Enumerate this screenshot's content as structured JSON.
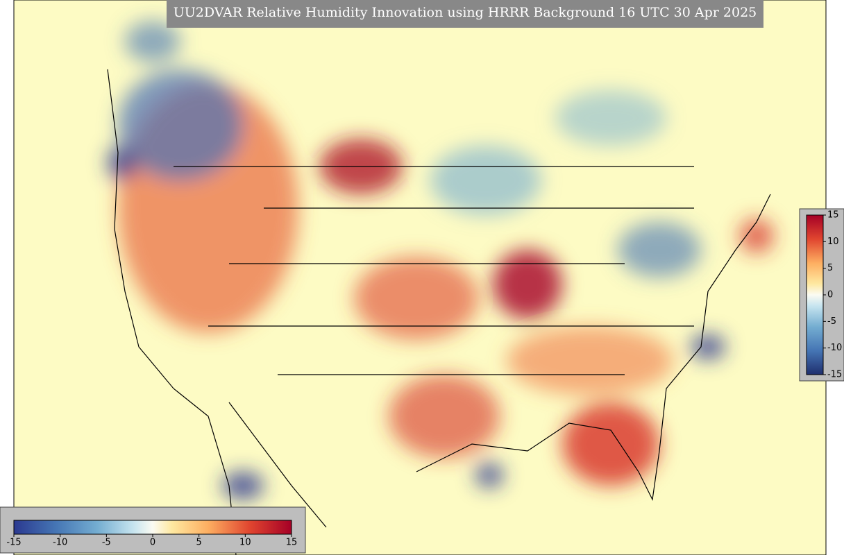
{
  "title": "UU2DVAR Relative Humidity Innovation using HRRR Background 16 UTC 30 Apr 2025",
  "colorbar": {
    "range": [
      -15,
      15
    ],
    "ticks": [
      -15,
      -10,
      -5,
      0,
      5,
      10,
      15
    ]
  }
}
